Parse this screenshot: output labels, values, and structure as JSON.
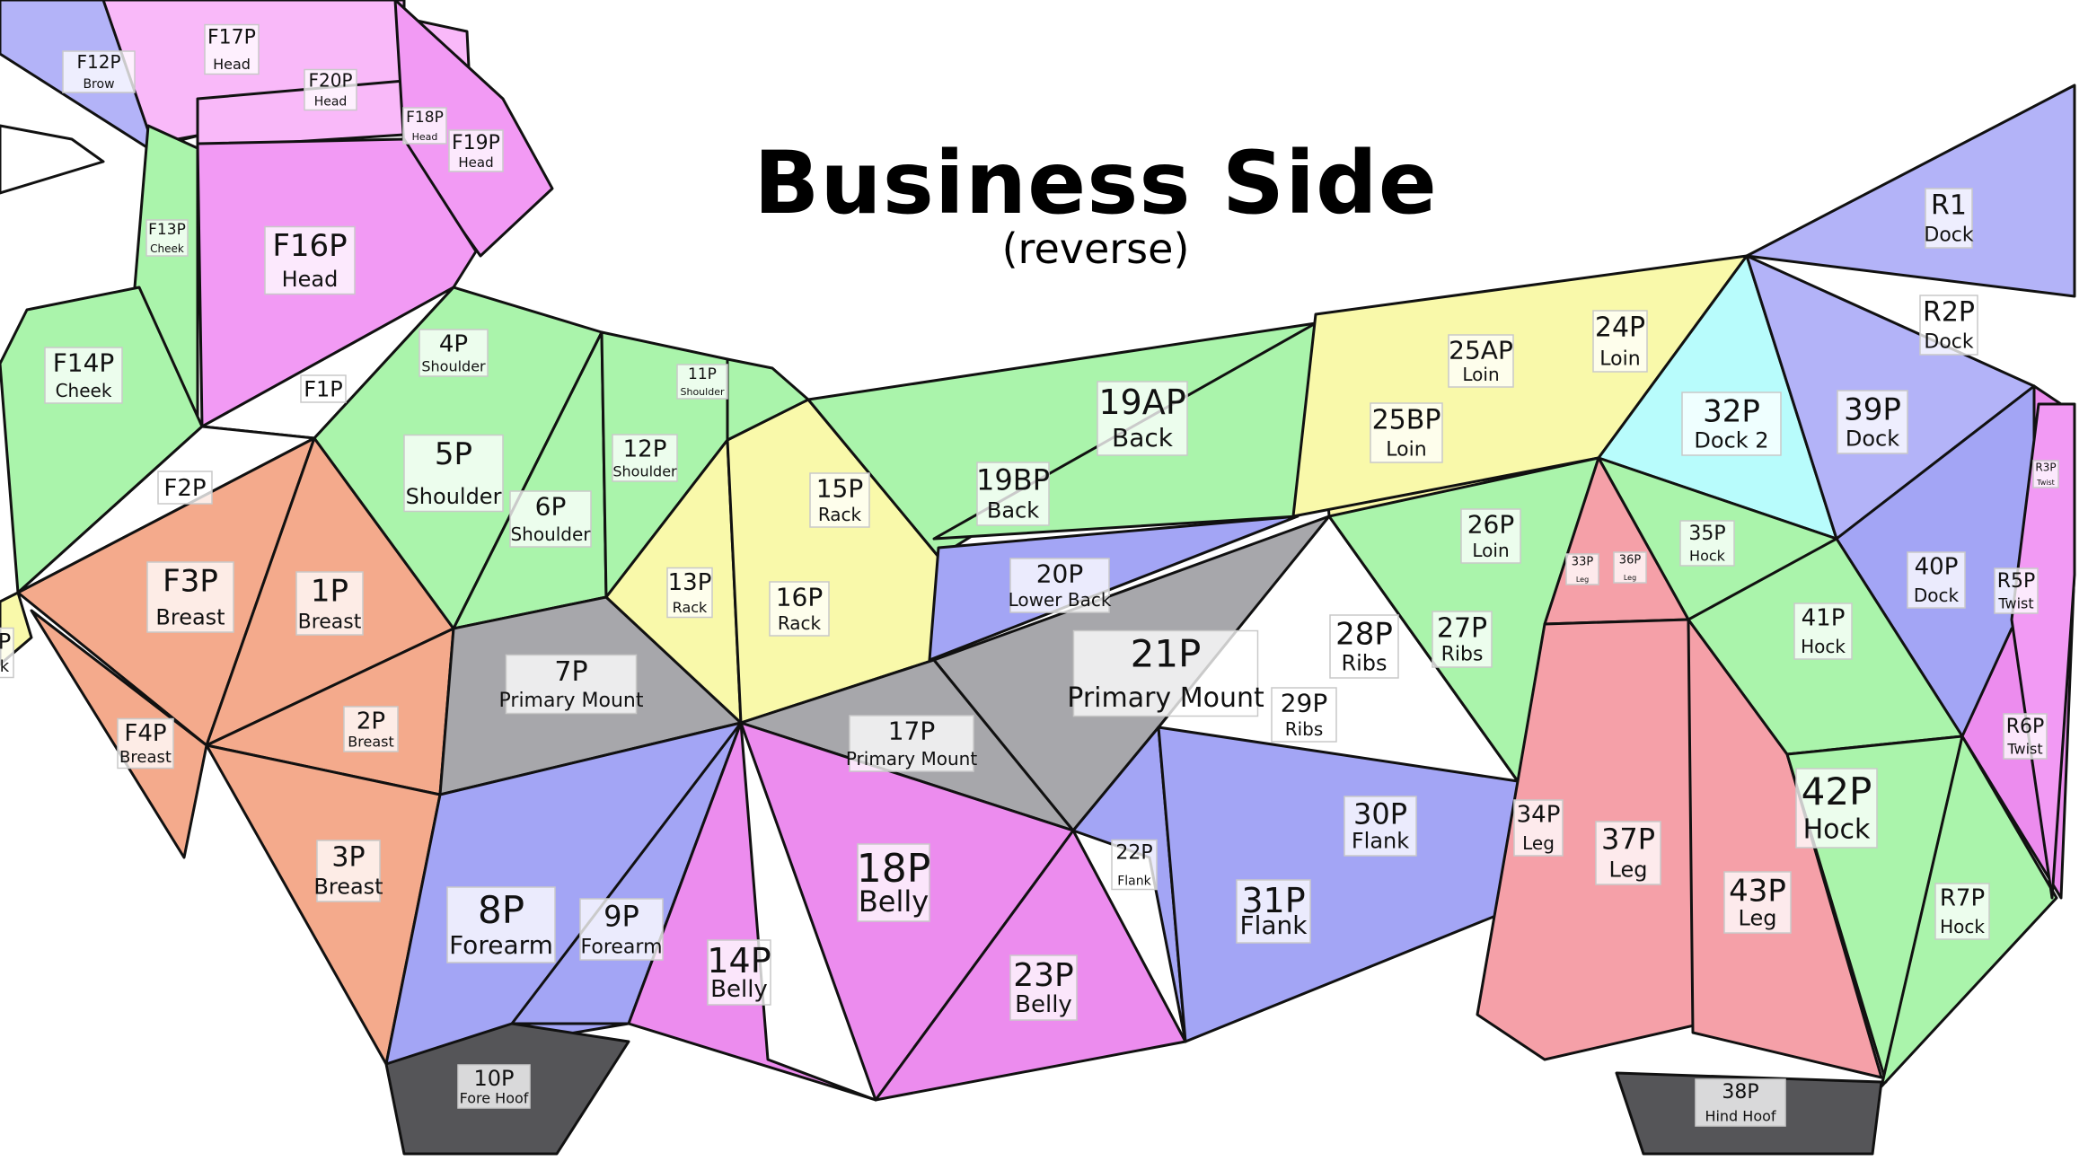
{
  "title": "Business Side",
  "subtitle": "(reverse)",
  "colors": {
    "lavender": "#b3b3f8",
    "blue": "#a3a5f5",
    "light_pink": "#f9b9f9",
    "pink": "#f29af4",
    "magenta": "#ec8cee",
    "green": "#aaf4ab",
    "yellow": "#f9f9aa",
    "salmon": "#f4aa8c",
    "gray": "#a7a7ab",
    "dark_gray": "#555558",
    "cyan": "#b8fcfc",
    "red_pink": "#f5a0a8",
    "white": "#ffffff"
  },
  "panels": [
    {
      "id": "F12P",
      "name": "Brow"
    },
    {
      "id": "F17P",
      "name": "Head"
    },
    {
      "id": "F20P",
      "name": "Head"
    },
    {
      "id": "F18P",
      "name": "Head"
    },
    {
      "id": "F19P",
      "name": "Head"
    },
    {
      "id": "F13P",
      "name": "Cheek"
    },
    {
      "id": "F16P",
      "name": "Head"
    },
    {
      "id": "F14P",
      "name": "Cheek"
    },
    {
      "id": "F1P",
      "name": ""
    },
    {
      "id": "F2P",
      "name": ""
    },
    {
      "id": "F3P",
      "name": "Breast"
    },
    {
      "id": "F4P",
      "name": "Breast"
    },
    {
      "id": "P",
      "name": "k"
    },
    {
      "id": "1P",
      "name": "Breast"
    },
    {
      "id": "2P",
      "name": "Breast"
    },
    {
      "id": "3P",
      "name": "Breast"
    },
    {
      "id": "4P",
      "name": "Shoulder"
    },
    {
      "id": "5P",
      "name": "Shoulder"
    },
    {
      "id": "6P",
      "name": "Shoulder"
    },
    {
      "id": "7P",
      "name": "Primary Mount"
    },
    {
      "id": "8P",
      "name": "Forearm"
    },
    {
      "id": "9P",
      "name": "Forearm"
    },
    {
      "id": "10P",
      "name": "Fore Hoof"
    },
    {
      "id": "11P",
      "name": "Shoulder"
    },
    {
      "id": "12P",
      "name": "Shoulder"
    },
    {
      "id": "13P",
      "name": "Rack"
    },
    {
      "id": "14P",
      "name": "Belly"
    },
    {
      "id": "15P",
      "name": "Rack"
    },
    {
      "id": "16P",
      "name": "Rack"
    },
    {
      "id": "17P",
      "name": "Primary Mount"
    },
    {
      "id": "18P",
      "name": "Belly"
    },
    {
      "id": "19AP",
      "name": "Back"
    },
    {
      "id": "19BP",
      "name": "Back"
    },
    {
      "id": "20P",
      "name": "Lower Back"
    },
    {
      "id": "21P",
      "name": "Primary Mount"
    },
    {
      "id": "22P",
      "name": "Flank"
    },
    {
      "id": "23P",
      "name": "Belly"
    },
    {
      "id": "24P",
      "name": "Loin"
    },
    {
      "id": "25AP",
      "name": "Loin"
    },
    {
      "id": "25BP",
      "name": "Loin"
    },
    {
      "id": "26P",
      "name": "Loin"
    },
    {
      "id": "27P",
      "name": "Ribs"
    },
    {
      "id": "28P",
      "name": "Ribs"
    },
    {
      "id": "29P",
      "name": "Ribs"
    },
    {
      "id": "30P",
      "name": "Flank"
    },
    {
      "id": "31P",
      "name": "Flank"
    },
    {
      "id": "32P",
      "name": "Dock 2"
    },
    {
      "id": "33P",
      "name": "Leg"
    },
    {
      "id": "34P",
      "name": "Leg"
    },
    {
      "id": "35P",
      "name": "Hock"
    },
    {
      "id": "36P",
      "name": "Leg"
    },
    {
      "id": "37P",
      "name": "Leg"
    },
    {
      "id": "38P",
      "name": "Hind Hoof"
    },
    {
      "id": "39P",
      "name": "Dock"
    },
    {
      "id": "40P",
      "name": "Dock"
    },
    {
      "id": "41P",
      "name": "Hock"
    },
    {
      "id": "42P",
      "name": "Hock"
    },
    {
      "id": "43P",
      "name": "Leg"
    },
    {
      "id": "R1",
      "name": "Dock"
    },
    {
      "id": "R2P",
      "name": "Dock"
    },
    {
      "id": "R3P",
      "name": "Twist"
    },
    {
      "id": "R5P",
      "name": "Twist"
    },
    {
      "id": "R6P",
      "name": "Twist"
    },
    {
      "id": "R7P",
      "name": "Hock"
    }
  ]
}
